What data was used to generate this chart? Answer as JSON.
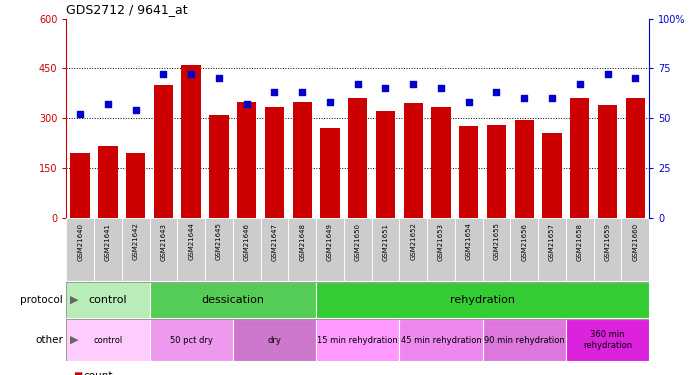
{
  "title": "GDS2712 / 9641_at",
  "samples": [
    "GSM21640",
    "GSM21641",
    "GSM21642",
    "GSM21643",
    "GSM21644",
    "GSM21645",
    "GSM21646",
    "GSM21647",
    "GSM21648",
    "GSM21649",
    "GSM21650",
    "GSM21651",
    "GSM21652",
    "GSM21653",
    "GSM21654",
    "GSM21655",
    "GSM21656",
    "GSM21657",
    "GSM21658",
    "GSM21659",
    "GSM21660"
  ],
  "counts": [
    195,
    215,
    195,
    400,
    460,
    310,
    350,
    335,
    350,
    270,
    360,
    320,
    345,
    335,
    275,
    280,
    295,
    255,
    360,
    340,
    360
  ],
  "percentiles": [
    52,
    57,
    54,
    72,
    72,
    70,
    57,
    63,
    63,
    58,
    67,
    65,
    67,
    65,
    58,
    63,
    60,
    60,
    67,
    72,
    70
  ],
  "bar_color": "#cc0000",
  "dot_color": "#0000cc",
  "ylim_left": [
    0,
    600
  ],
  "ylim_right": [
    0,
    100
  ],
  "yticks_left": [
    0,
    150,
    300,
    450,
    600
  ],
  "yticks_right": [
    0,
    25,
    50,
    75,
    100
  ],
  "ytick_labels_left": [
    "0",
    "150",
    "300",
    "450",
    "600"
  ],
  "ytick_labels_right": [
    "0",
    "25",
    "50",
    "75",
    "100%"
  ],
  "protocol_groups": [
    {
      "label": "control",
      "start": 0,
      "end": 3,
      "color": "#b8edb8"
    },
    {
      "label": "dessication",
      "start": 3,
      "end": 9,
      "color": "#55cc55"
    },
    {
      "label": "rehydration",
      "start": 9,
      "end": 21,
      "color": "#33cc33"
    }
  ],
  "other_groups": [
    {
      "label": "control",
      "start": 0,
      "end": 3,
      "color": "#ffccff"
    },
    {
      "label": "50 pct dry",
      "start": 3,
      "end": 6,
      "color": "#ee99ee"
    },
    {
      "label": "dry",
      "start": 6,
      "end": 9,
      "color": "#cc77cc"
    },
    {
      "label": "15 min rehydration",
      "start": 9,
      "end": 12,
      "color": "#ff99ff"
    },
    {
      "label": "45 min rehydration",
      "start": 12,
      "end": 15,
      "color": "#ee88ee"
    },
    {
      "label": "90 min rehydration",
      "start": 15,
      "end": 18,
      "color": "#dd77dd"
    },
    {
      "label": "360 min\nrehydration",
      "start": 18,
      "end": 21,
      "color": "#dd22dd"
    }
  ],
  "left_axis_color": "#cc0000",
  "right_axis_color": "#0000cc",
  "xticklabel_bg": "#cccccc"
}
